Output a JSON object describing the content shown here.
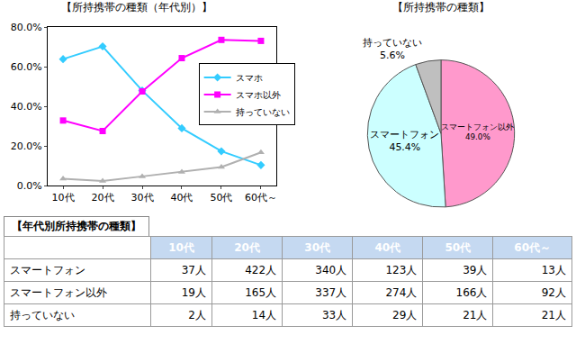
{
  "chart_data": [
    {
      "type": "line",
      "title": "【所持携帯の種類（年代別）】",
      "categories": [
        "10代",
        "20代",
        "30代",
        "40代",
        "50代",
        "60代～"
      ],
      "series": [
        {
          "name": "スマホ",
          "color": "#33ccff",
          "marker": "diamond",
          "values": [
            63.8,
            70.2,
            47.9,
            28.9,
            17.3,
            10.3
          ]
        },
        {
          "name": "スマホ以外",
          "color": "#ff00ff",
          "marker": "square",
          "values": [
            32.8,
            27.5,
            47.5,
            64.3,
            73.5,
            73.0
          ]
        },
        {
          "name": "持っていない",
          "color": "#b0b0b0",
          "marker": "triangle-up",
          "values": [
            3.4,
            2.3,
            4.6,
            6.8,
            9.3,
            16.7
          ]
        }
      ],
      "ylim": [
        0,
        80
      ],
      "yticks": [
        {
          "value": 0,
          "label": "0.0%"
        },
        {
          "value": 20,
          "label": "20.0%"
        },
        {
          "value": 40,
          "label": "40.0%"
        },
        {
          "value": 60,
          "label": "60.0%"
        },
        {
          "value": 80,
          "label": "80.0%"
        }
      ],
      "grid": false,
      "legend": "right"
    },
    {
      "type": "pie",
      "title": "【所持携帯の種類】",
      "categories": [
        "スマートフォン以外",
        "スマートフォン",
        "持っていない"
      ],
      "values": [
        49.0,
        45.4,
        5.6
      ],
      "value_labels": [
        "49.0%",
        "45.4%",
        "5.6%"
      ],
      "colors": [
        "#ff99cc",
        "#ccffff",
        "#bfbfbf"
      ],
      "data_labels": true
    }
  ],
  "table": {
    "title": "【年代別所持携帯の種類】",
    "columns": [
      null,
      "10代",
      "20代",
      "30代",
      "40代",
      "50代",
      "60代～"
    ],
    "rows": [
      [
        "スマートフォン",
        "37人",
        "422人",
        "340人",
        "123人",
        "39人",
        "13人"
      ],
      [
        "スマートフォン以外",
        "19人",
        "165人",
        "337人",
        "274人",
        "166人",
        "92人"
      ],
      [
        "持っていない",
        "2人",
        "14人",
        "33人",
        "29人",
        "21人",
        "21人"
      ]
    ]
  }
}
